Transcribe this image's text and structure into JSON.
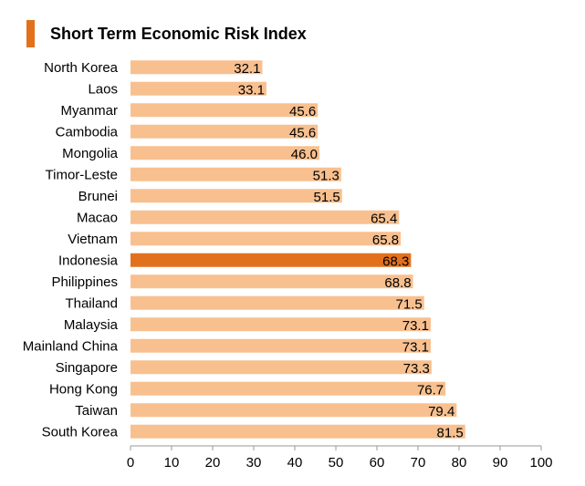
{
  "chart_data": {
    "type": "bar",
    "orientation": "horizontal",
    "title": "Short Term Economic Risk Index",
    "categories": [
      "North Korea",
      "Laos",
      "Myanmar",
      "Cambodia",
      "Mongolia",
      "Timor-Leste",
      "Brunei",
      "Macao",
      "Vietnam",
      "Indonesia",
      "Philippines",
      "Thailand",
      "Malaysia",
      "Mainland China",
      "Singapore",
      "Hong Kong",
      "Taiwan",
      "South Korea"
    ],
    "values": [
      32.1,
      33.1,
      45.6,
      45.6,
      46.0,
      51.3,
      51.5,
      65.4,
      65.8,
      68.3,
      68.8,
      71.5,
      73.1,
      73.1,
      73.3,
      76.7,
      79.4,
      81.5
    ],
    "value_labels": [
      "32.1",
      "33.1",
      "45.6",
      "45.6",
      "46.0",
      "51.3",
      "51.5",
      "65.4",
      "65.8",
      "68.3",
      "68.8",
      "71.5",
      "73.1",
      "73.1",
      "73.3",
      "76.7",
      "79.4",
      "81.5"
    ],
    "highlight_category": "Indonesia",
    "xlim": [
      0,
      100
    ],
    "xticks": [
      "0",
      "10",
      "20",
      "30",
      "40",
      "50",
      "60",
      "70",
      "80",
      "90",
      "100"
    ],
    "grid": false,
    "colors": {
      "bar": "#f8c08f",
      "highlight": "#e2711d",
      "title_accent": "#e2711d",
      "axis": "#999999"
    }
  }
}
